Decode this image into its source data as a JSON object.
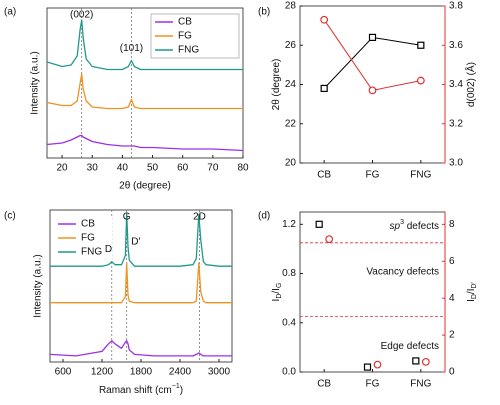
{
  "chart_data": [
    {
      "type": "line",
      "label": "(a)",
      "xlabel": "2θ (degree)",
      "ylabel": "Intensity (a.u.)",
      "xlim": [
        15,
        80
      ],
      "xticks": [
        20,
        30,
        40,
        50,
        60,
        70,
        80
      ],
      "ylim": [
        0,
        10
      ],
      "x": [
        15,
        20,
        23,
        25,
        26,
        26.5,
        27,
        28,
        30,
        35,
        40,
        42,
        43,
        44,
        46,
        50,
        60,
        70,
        80
      ],
      "series": [
        {
          "name": "CB",
          "color": "#9b30e8",
          "values": [
            0.9,
            1.0,
            1.2,
            1.4,
            1.5,
            1.5,
            1.4,
            1.3,
            1.1,
            0.9,
            0.8,
            0.8,
            0.8,
            0.8,
            0.7,
            0.7,
            0.6,
            0.6,
            0.5
          ]
        },
        {
          "name": "FG",
          "color": "#ee9322",
          "values": [
            3.7,
            3.5,
            3.5,
            3.8,
            5.0,
            5.6,
            4.6,
            3.8,
            3.4,
            3.3,
            3.3,
            3.4,
            3.9,
            3.4,
            3.3,
            3.3,
            3.3,
            3.3,
            3.3
          ]
        },
        {
          "name": "FNG",
          "color": "#1f9a8a",
          "values": [
            6.4,
            6.1,
            6.2,
            6.8,
            8.6,
            9.2,
            8.0,
            6.6,
            6.1,
            5.9,
            5.9,
            6.1,
            6.5,
            6.1,
            5.9,
            5.9,
            5.9,
            5.9,
            5.9
          ]
        }
      ],
      "reference_lines": [
        26.5,
        43
      ],
      "legend": "upper right",
      "annotations": [
        "(002)",
        "(101)"
      ]
    },
    {
      "type": "scatter",
      "label": "(b)",
      "connect": true,
      "ylabel": [
        {
          "text": "2θ (degree)"
        }
      ],
      "y2label": [
        {
          "text": "d(002) (Å)"
        }
      ],
      "categories": [
        "CB",
        "FG",
        "FNG"
      ],
      "ylim": [
        20,
        28
      ],
      "yticks": [
        20,
        22,
        24,
        26,
        28
      ],
      "y2lim": [
        3,
        3.8
      ],
      "y2ticks": [
        {
          "value": 3,
          "label": "3.0"
        },
        3.2,
        3.4,
        3.6,
        3.8
      ],
      "series": [
        {
          "color": "#000000",
          "marker": "square",
          "values": [
            23.8,
            26.4,
            26.0
          ]
        },
        {
          "color": "#e03030",
          "marker": "circle",
          "axis": "y2",
          "values": [
            3.73,
            3.37,
            3.42
          ]
        }
      ]
    },
    {
      "type": "line",
      "label": "(c)",
      "xlabel": [
        {
          "text": "Raman shift (cm"
        },
        {
          "text": "−1",
          "shift": "sup"
        },
        {
          "text": ")"
        }
      ],
      "ylabel": "Intensity (a.u.)",
      "xlim": [
        400,
        3200
      ],
      "xticks": [
        600,
        1200,
        1800,
        2400,
        3000
      ],
      "ylim": [
        0,
        10
      ],
      "x": [
        400,
        800,
        1200,
        1300,
        1350,
        1400,
        1500,
        1560,
        1580,
        1600,
        1620,
        1700,
        2000,
        2400,
        2600,
        2650,
        2690,
        2720,
        2760,
        2800,
        3000,
        3200
      ],
      "series": [
        {
          "name": "CB",
          "color": "#9b30e8",
          "values": [
            0.5,
            0.4,
            0.7,
            1.2,
            1.4,
            1.2,
            0.9,
            1.3,
            1.4,
            1.2,
            0.8,
            0.5,
            0.4,
            0.4,
            0.4,
            0.5,
            0.6,
            0.5,
            0.4,
            0.4,
            0.4,
            0.4
          ]
        },
        {
          "name": "FG",
          "color": "#ee9322",
          "values": [
            3.9,
            3.9,
            3.9,
            3.9,
            3.9,
            3.9,
            3.9,
            4.3,
            6.5,
            4.4,
            4.0,
            3.9,
            3.9,
            3.9,
            3.9,
            4.0,
            6.5,
            4.6,
            4.0,
            3.9,
            3.9,
            3.9
          ]
        },
        {
          "name": "FNG",
          "color": "#1f9a8a",
          "values": [
            6.3,
            6.3,
            6.3,
            6.4,
            6.6,
            6.4,
            6.4,
            7.0,
            9.8,
            7.6,
            6.7,
            6.3,
            6.3,
            6.3,
            6.4,
            6.8,
            9.7,
            8.0,
            6.6,
            6.4,
            6.3,
            6.3
          ]
        }
      ],
      "reference_lines": [
        1350,
        1580,
        2700
      ],
      "legend": "upper left",
      "annotations": [
        "D",
        "G",
        "D'",
        "2D"
      ]
    },
    {
      "type": "scatter",
      "label": "(d)",
      "connect": false,
      "ylabel": [
        {
          "text": "I"
        },
        {
          "text": "D",
          "shift": "sub"
        },
        {
          "text": "/I"
        },
        {
          "text": "G",
          "shift": "sub"
        }
      ],
      "y2label": [
        {
          "text": "I"
        },
        {
          "text": "D",
          "shift": "sub"
        },
        {
          "text": "/I"
        },
        {
          "text": "D'",
          "shift": "sub"
        }
      ],
      "categories": [
        "CB",
        "FG",
        "FNG"
      ],
      "ylim": [
        0,
        1.3
      ],
      "yticks": [
        {
          "value": 0,
          "label": "0.0"
        },
        0.4,
        0.8,
        1.2
      ],
      "y2lim": [
        0,
        8.67
      ],
      "y2ticks": [
        0,
        2,
        4,
        6,
        8
      ],
      "series": [
        {
          "color": "#000000",
          "marker": "square",
          "values": [
            1.2,
            0.04,
            0.09
          ]
        },
        {
          "color": "#e03030",
          "marker": "circle",
          "axis": "y2",
          "values": [
            7.2,
            0.4,
            0.55
          ]
        }
      ],
      "reference_lines_y2": [
        7,
        3
      ],
      "annotations": [
        [
          {
            "text": "sp",
            "italic": true
          },
          {
            "text": "3",
            "shift": "sup"
          },
          {
            "text": " defects"
          }
        ],
        [
          {
            "text": "Vacancy defects"
          }
        ],
        [
          {
            "text": "Edge defects"
          }
        ]
      ]
    }
  ]
}
